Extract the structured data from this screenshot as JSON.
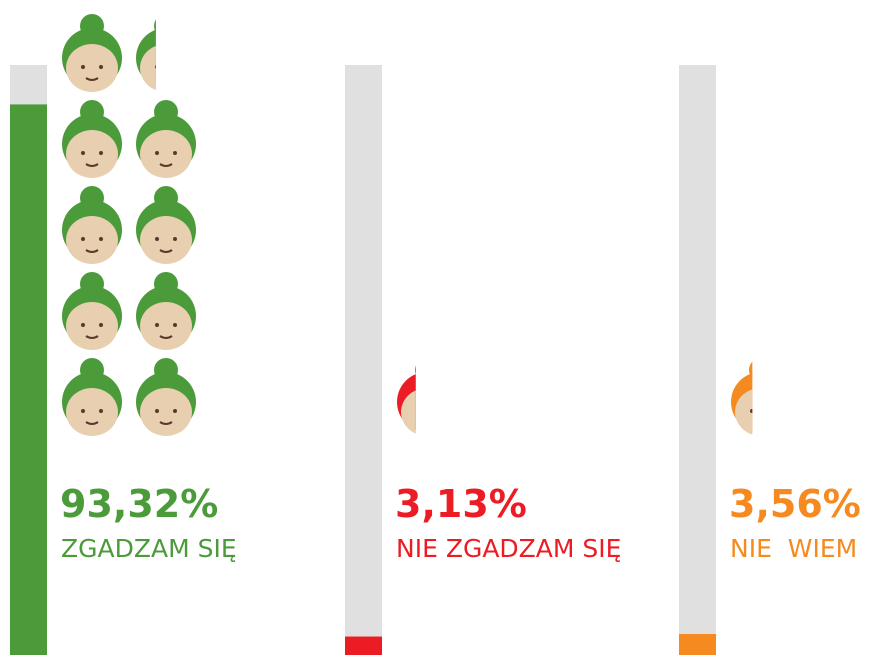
{
  "chart_data": {
    "type": "pictogram",
    "categories": [
      "ZGADZAM SIĘ",
      "NIE ZGADZAM SIĘ",
      "NIE  WIEM"
    ],
    "values": [
      93.32,
      3.13,
      3.56
    ],
    "value_labels": [
      "93,32%",
      "3,13%",
      "3,56%"
    ],
    "colors": [
      "#4b9b3b",
      "#ec1c24",
      "#f58a20"
    ],
    "ylim": [
      0,
      100
    ]
  }
}
